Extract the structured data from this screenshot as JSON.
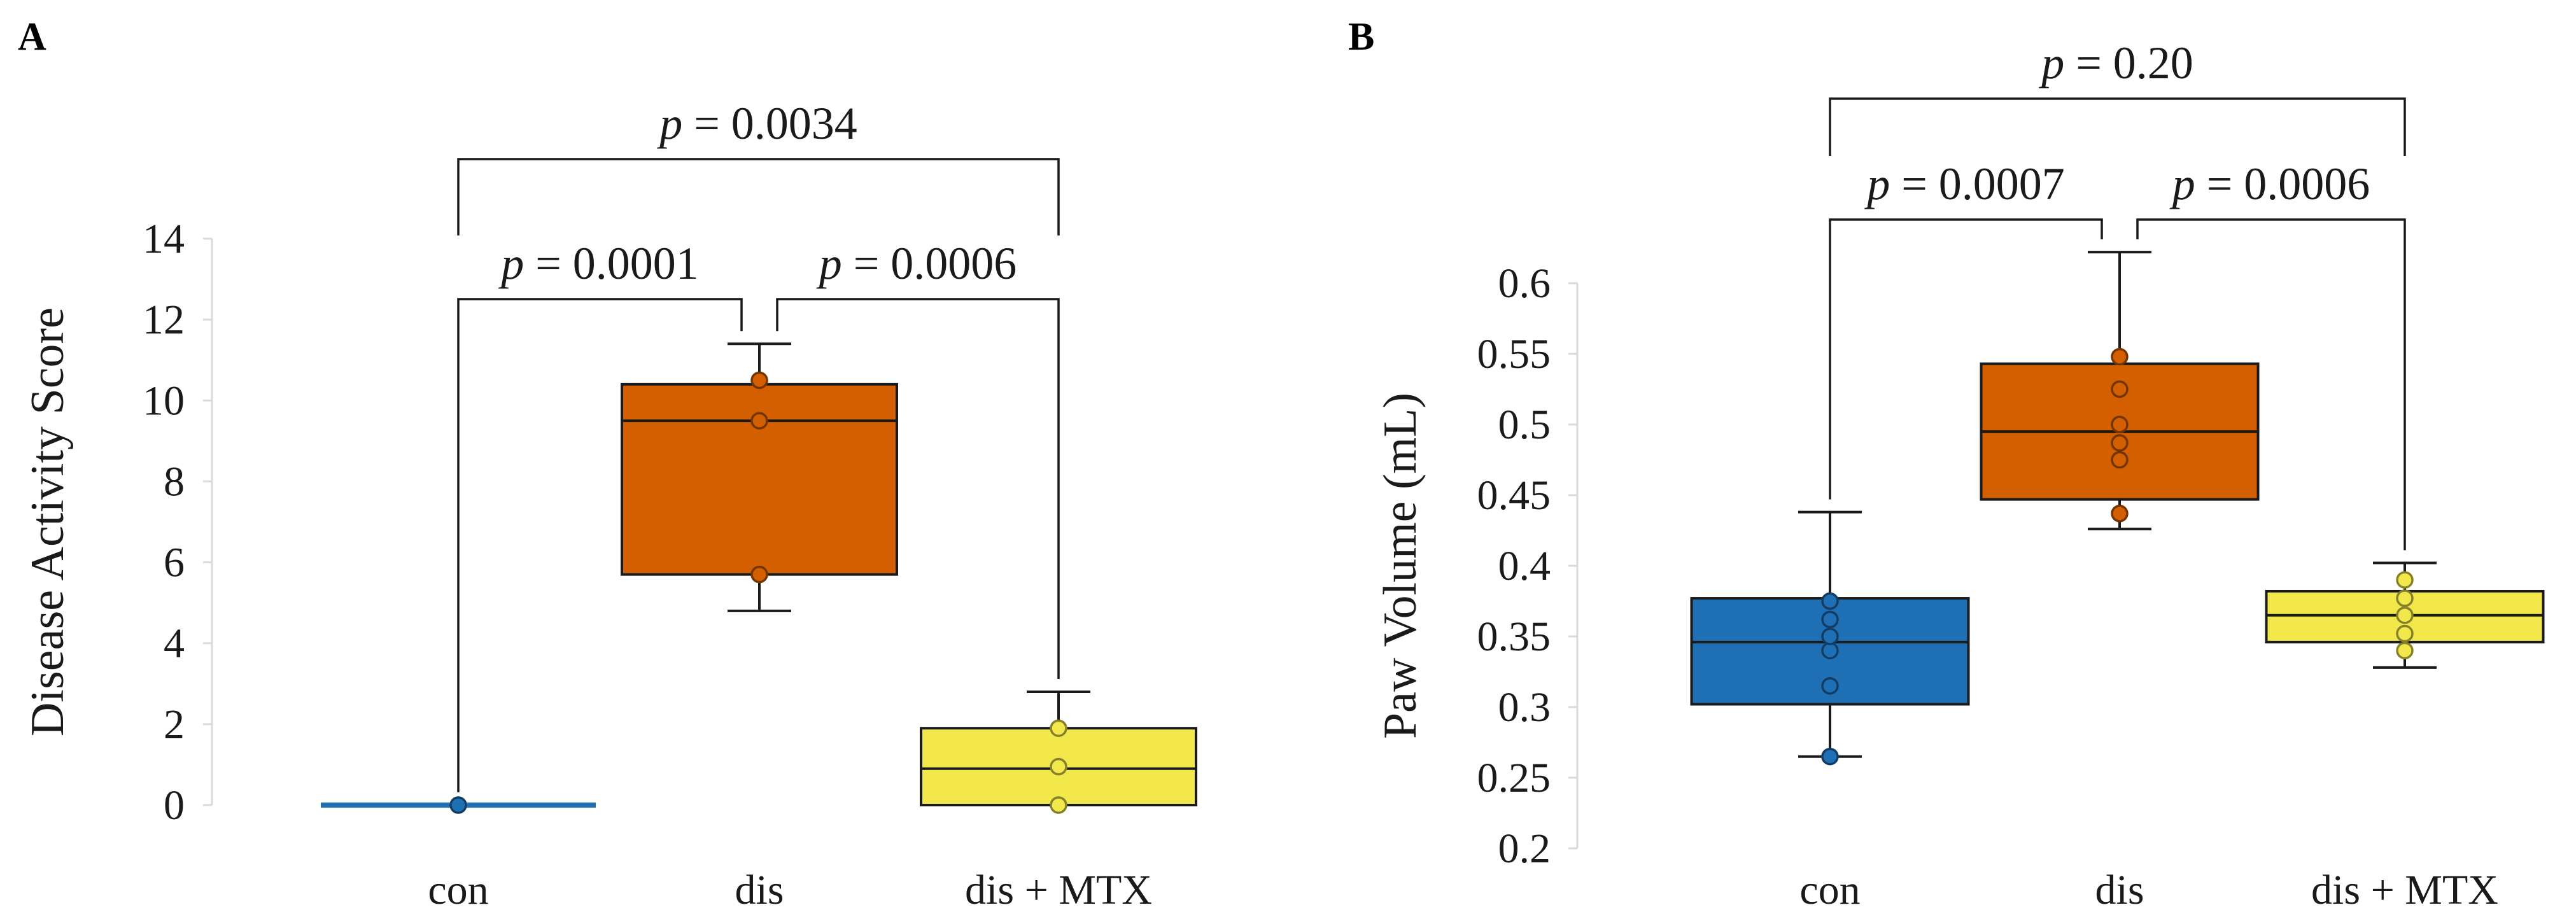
{
  "chart_data": [
    {
      "panel": "A",
      "type": "box",
      "categories": [
        "con",
        "dis",
        "dis + MTX"
      ],
      "ylabel": "Disease Activity Score",
      "ylim": [
        0,
        14
      ],
      "yticks": [
        0,
        2,
        4,
        6,
        8,
        10,
        12,
        14
      ],
      "ytick_labels": [
        "0",
        "2",
        "4",
        "6",
        "8",
        "10",
        "12",
        "14"
      ],
      "boxes": [
        {
          "name": "con",
          "color": "#1f6fb5",
          "min": 0,
          "q1": 0,
          "median": 0,
          "q3": 0,
          "max": 0,
          "points": [
            0
          ]
        },
        {
          "name": "dis",
          "color": "#d35f00",
          "min": 4.8,
          "q1": 5.7,
          "median": 9.5,
          "q3": 10.4,
          "max": 11.4,
          "points": [
            5.7,
            9.5,
            10.5
          ]
        },
        {
          "name": "dis + MTX",
          "color": "#f2e84b",
          "min": 0,
          "q1": 0,
          "median": 0.9,
          "q3": 1.9,
          "max": 2.8,
          "points": [
            0,
            0.95,
            1.9
          ]
        }
      ],
      "comparisons": [
        {
          "from": 0,
          "to": 1,
          "p_prefix": "p",
          "p_value": " = 0.0001",
          "level": 0
        },
        {
          "from": 1,
          "to": 2,
          "p_prefix": "p",
          "p_value": " = 0.0006",
          "level": 0
        },
        {
          "from": 0,
          "to": 2,
          "p_prefix": "p",
          "p_value": " = 0.0034",
          "level": 1
        }
      ]
    },
    {
      "panel": "B",
      "type": "box",
      "categories": [
        "con",
        "dis",
        "dis + MTX"
      ],
      "ylabel": "Paw Volume (mL)",
      "ylim": [
        0.2,
        0.6
      ],
      "yticks": [
        0.2,
        0.25,
        0.3,
        0.35,
        0.4,
        0.45,
        0.5,
        0.55,
        0.6
      ],
      "ytick_labels": [
        "0.2",
        "0.25",
        "0.3",
        "0.35",
        "0.4",
        "0.45",
        "0.5",
        "0.55",
        "0.6"
      ],
      "boxes": [
        {
          "name": "con",
          "color": "#1f6fb5",
          "min": 0.265,
          "q1": 0.302,
          "median": 0.346,
          "q3": 0.377,
          "max": 0.438,
          "points": [
            0.265,
            0.315,
            0.34,
            0.35,
            0.362,
            0.375
          ]
        },
        {
          "name": "dis",
          "color": "#d35f00",
          "min": 0.426,
          "q1": 0.447,
          "median": 0.495,
          "q3": 0.543,
          "max": 0.622,
          "points": [
            0.437,
            0.475,
            0.487,
            0.5,
            0.525,
            0.548
          ]
        },
        {
          "name": "dis + MTX",
          "color": "#f2e84b",
          "min": 0.328,
          "q1": 0.346,
          "median": 0.365,
          "q3": 0.382,
          "max": 0.402,
          "points": [
            0.34,
            0.352,
            0.365,
            0.377,
            0.39
          ]
        }
      ],
      "comparisons": [
        {
          "from": 0,
          "to": 1,
          "p_prefix": "p",
          "p_value": " = 0.0007",
          "level": 0
        },
        {
          "from": 1,
          "to": 2,
          "p_prefix": "p",
          "p_value": " = 0.0006",
          "level": 0
        },
        {
          "from": 0,
          "to": 2,
          "p_prefix": "p",
          "p_value": " = 0.20",
          "level": 1
        }
      ]
    }
  ]
}
